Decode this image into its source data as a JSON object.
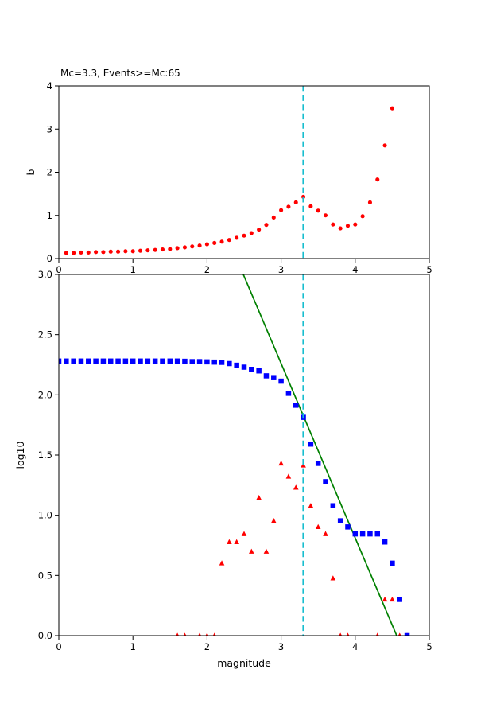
{
  "figure": {
    "background": "#ffffff",
    "title": "Mc=3.3, Events>=Mc:65",
    "colors": {
      "b_curve": "#ff0000",
      "cumulative_markers": "#0000ff",
      "binned_markers": "#ff0000",
      "fit_line": "#008000",
      "mc_line": "#17becf",
      "axis": "#000000"
    }
  },
  "chart_data": [
    {
      "id": "b-value-stability-plot",
      "type": "scatter",
      "title": "Mc=3.3, Events>=Mc:65",
      "xlabel": "",
      "ylabel": "b",
      "xlim": [
        0,
        5
      ],
      "ylim": [
        0,
        4
      ],
      "grid": false,
      "legend": "none",
      "xtick_vals": [
        0,
        1,
        2,
        3,
        4,
        5
      ],
      "xtick_labels": [
        "0",
        "1",
        "2",
        "3",
        "4",
        "5"
      ],
      "ytick_vals": [
        0,
        1,
        2,
        3,
        4
      ],
      "ytick_labels": [
        "0",
        "1",
        "2",
        "3",
        "4"
      ],
      "series": [
        {
          "name": "b-value vs cutoff magnitude",
          "marker": "circle",
          "color": "#ff0000",
          "x": [
            0.1,
            0.2,
            0.3,
            0.4,
            0.5,
            0.6,
            0.7,
            0.8,
            0.9,
            1.0,
            1.1,
            1.2,
            1.3,
            1.4,
            1.5,
            1.6,
            1.7,
            1.8,
            1.9,
            2.0,
            2.1,
            2.2,
            2.3,
            2.4,
            2.5,
            2.6,
            2.7,
            2.8,
            2.9,
            3.0,
            3.1,
            3.2,
            3.3,
            3.4,
            3.5,
            3.6,
            3.7,
            3.8,
            3.9,
            4.0,
            4.1,
            4.2,
            4.3,
            4.4,
            4.5
          ],
          "y": [
            0.13,
            0.13,
            0.14,
            0.14,
            0.15,
            0.15,
            0.16,
            0.16,
            0.17,
            0.17,
            0.18,
            0.19,
            0.2,
            0.21,
            0.22,
            0.24,
            0.26,
            0.28,
            0.3,
            0.33,
            0.36,
            0.39,
            0.43,
            0.48,
            0.53,
            0.59,
            0.67,
            0.78,
            0.95,
            1.12,
            1.2,
            1.3,
            1.43,
            1.21,
            1.11,
            1.0,
            0.79,
            0.7,
            0.76,
            0.79,
            0.98,
            1.3,
            1.83,
            2.62,
            3.48
          ]
        }
      ],
      "lines": [],
      "vlines": [
        {
          "name": "mc-line",
          "x": 3.3,
          "color": "#17becf",
          "width": 2.3,
          "dash": [
            7.3,
            4.3
          ]
        }
      ]
    },
    {
      "id": "frequency-magnitude-plot",
      "type": "scatter",
      "title": "",
      "xlabel": "magnitude",
      "ylabel": "log10",
      "xlim": [
        0,
        5
      ],
      "ylim": [
        0,
        3
      ],
      "grid": false,
      "legend": "none",
      "xtick_vals": [
        0,
        1,
        2,
        3,
        4,
        5
      ],
      "xtick_labels": [
        "0",
        "1",
        "2",
        "3",
        "4",
        "5"
      ],
      "ytick_vals": [
        0,
        0.5,
        1,
        1.5,
        2,
        2.5,
        3
      ],
      "ytick_labels": [
        "0.0",
        "0.5",
        "1.0",
        "1.5",
        "2.0",
        "2.5",
        "3.0"
      ],
      "series": [
        {
          "name": "non-cumulative counts log10",
          "marker": "triangle",
          "color": "#ff0000",
          "x": [
            1.6,
            1.7,
            1.9,
            2.0,
            2.1,
            2.2,
            2.3,
            2.4,
            2.5,
            2.6,
            2.7,
            2.8,
            2.9,
            3.0,
            3.1,
            3.2,
            3.3,
            3.4,
            3.5,
            3.6,
            3.7,
            3.8,
            3.9,
            4.3,
            4.4,
            4.5,
            4.6,
            4.7
          ],
          "y": [
            0.0,
            0.0,
            0.0,
            0.0,
            0.0,
            0.602,
            0.778,
            0.778,
            0.845,
            0.699,
            1.146,
            0.699,
            0.954,
            1.431,
            1.322,
            1.23,
            1.415,
            1.079,
            0.903,
            0.845,
            0.477,
            0.0,
            0.0,
            0.0,
            0.301,
            0.301,
            0.0,
            0.0
          ]
        },
        {
          "name": "cumulative counts log10",
          "marker": "square",
          "color": "#0000ff",
          "x": [
            0.0,
            0.1,
            0.2,
            0.3,
            0.4,
            0.5,
            0.6,
            0.7,
            0.8,
            0.9,
            1.0,
            1.1,
            1.2,
            1.3,
            1.4,
            1.5,
            1.6,
            1.7,
            1.8,
            1.9,
            2.0,
            2.1,
            2.2,
            2.3,
            2.4,
            2.5,
            2.6,
            2.7,
            2.8,
            2.9,
            3.0,
            3.1,
            3.2,
            3.3,
            3.4,
            3.5,
            3.6,
            3.7,
            3.8,
            3.9,
            4.0,
            4.1,
            4.2,
            4.3,
            4.4,
            4.5,
            4.6,
            4.7
          ],
          "y": [
            2.281,
            2.281,
            2.281,
            2.281,
            2.281,
            2.281,
            2.281,
            2.281,
            2.281,
            2.281,
            2.281,
            2.281,
            2.281,
            2.281,
            2.281,
            2.281,
            2.281,
            2.279,
            2.276,
            2.276,
            2.274,
            2.272,
            2.27,
            2.26,
            2.246,
            2.23,
            2.212,
            2.199,
            2.158,
            2.143,
            2.114,
            2.013,
            1.914,
            1.813,
            1.591,
            1.431,
            1.279,
            1.079,
            0.954,
            0.903,
            0.845,
            0.845,
            0.845,
            0.845,
            0.778,
            0.602,
            0.301,
            0.0
          ]
        }
      ],
      "lines": [
        {
          "name": "gutenberg-richter-fit",
          "color": "#008000",
          "width": 1.7,
          "points": [
            [
              2.49,
              3.0
            ],
            [
              4.56,
              0.0
            ]
          ]
        }
      ],
      "vlines": [
        {
          "name": "mc-line",
          "x": 3.3,
          "color": "#17becf",
          "width": 2.3,
          "dash": [
            7.3,
            4.3
          ]
        }
      ]
    }
  ]
}
